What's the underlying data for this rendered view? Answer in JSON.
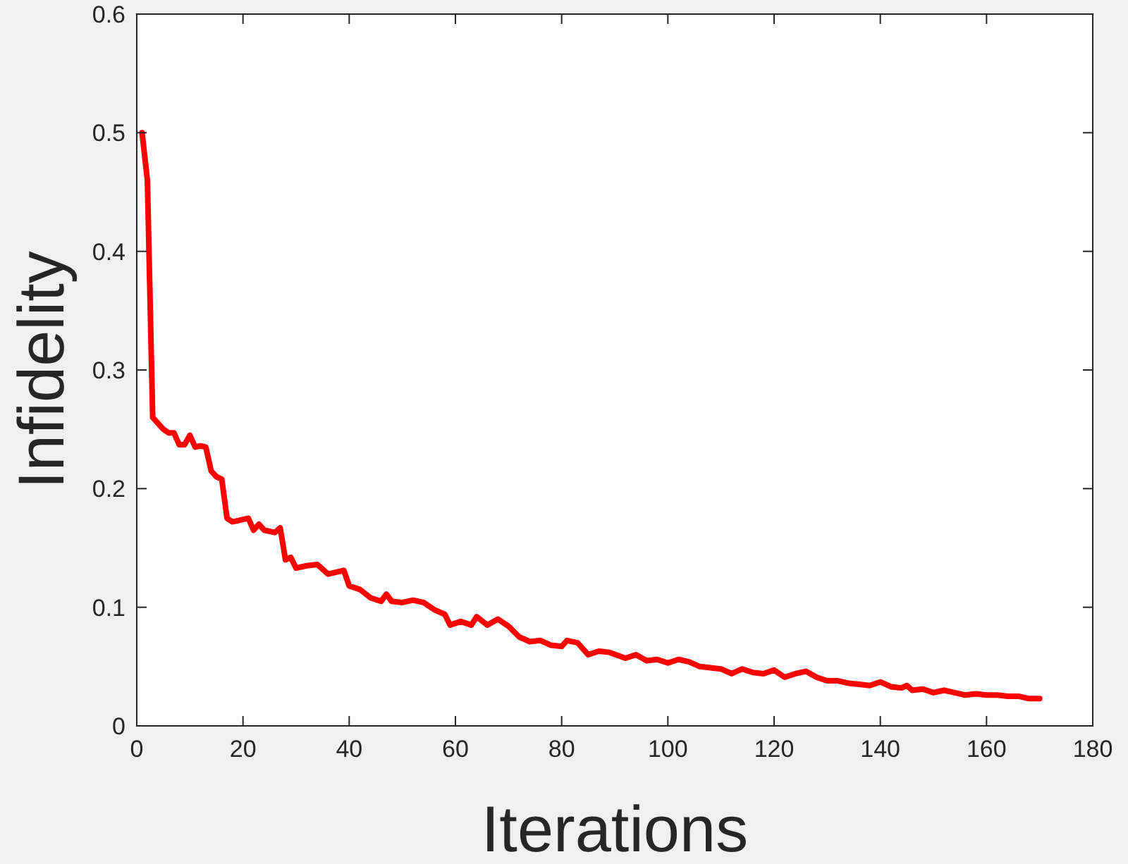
{
  "chart_data": {
    "type": "line",
    "xlabel": "Iterations",
    "ylabel": "Infidelity",
    "xlim": [
      0,
      180
    ],
    "ylim": [
      0,
      0.6
    ],
    "xticks": [
      0,
      20,
      40,
      60,
      80,
      100,
      120,
      140,
      160,
      180
    ],
    "yticks": [
      0,
      0.1,
      0.2,
      0.3,
      0.4,
      0.5,
      0.6
    ],
    "grid": false,
    "line_style": "solid",
    "marker": "none",
    "series": [
      {
        "color": "#ff0000",
        "x": [
          1,
          2,
          3,
          4,
          5,
          6,
          7,
          8,
          9,
          10,
          11,
          12,
          13,
          14,
          15,
          16,
          17,
          18,
          19,
          21,
          22,
          23,
          24,
          26,
          27,
          28,
          29,
          30,
          32,
          34,
          36,
          38,
          39,
          40,
          42,
          44,
          46,
          47,
          48,
          50,
          52,
          54,
          56,
          58,
          59,
          61,
          63,
          64,
          66,
          68,
          70,
          72,
          74,
          76,
          78,
          80,
          81,
          83,
          85,
          87,
          89,
          92,
          94,
          96,
          98,
          100,
          102,
          104,
          106,
          108,
          110,
          112,
          114,
          116,
          118,
          120,
          122,
          124,
          126,
          128,
          130,
          132,
          134,
          136,
          138,
          140,
          142,
          144,
          145,
          146,
          148,
          150,
          152,
          154,
          156,
          158,
          160,
          162,
          164,
          166,
          168,
          170
        ],
        "values": [
          0.5,
          0.46,
          0.26,
          0.255,
          0.25,
          0.247,
          0.247,
          0.237,
          0.237,
          0.245,
          0.235,
          0.236,
          0.235,
          0.215,
          0.21,
          0.208,
          0.175,
          0.172,
          0.173,
          0.175,
          0.165,
          0.17,
          0.165,
          0.163,
          0.167,
          0.14,
          0.142,
          0.133,
          0.135,
          0.136,
          0.128,
          0.13,
          0.131,
          0.118,
          0.115,
          0.108,
          0.105,
          0.111,
          0.105,
          0.104,
          0.106,
          0.104,
          0.098,
          0.094,
          0.085,
          0.088,
          0.085,
          0.092,
          0.085,
          0.09,
          0.084,
          0.075,
          0.071,
          0.072,
          0.068,
          0.067,
          0.072,
          0.07,
          0.06,
          0.063,
          0.062,
          0.057,
          0.06,
          0.055,
          0.056,
          0.053,
          0.056,
          0.054,
          0.05,
          0.049,
          0.048,
          0.044,
          0.048,
          0.045,
          0.044,
          0.047,
          0.041,
          0.044,
          0.046,
          0.041,
          0.038,
          0.038,
          0.036,
          0.035,
          0.034,
          0.037,
          0.033,
          0.032,
          0.034,
          0.03,
          0.031,
          0.028,
          0.03,
          0.028,
          0.026,
          0.027,
          0.026,
          0.026,
          0.025,
          0.025,
          0.023,
          0.023
        ]
      }
    ]
  }
}
